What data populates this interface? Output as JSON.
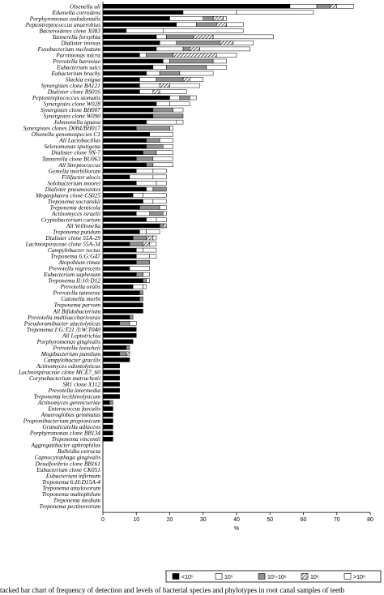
{
  "chart_data": {
    "type": "bar",
    "orientation": "horizontal",
    "stacked": true,
    "title": "",
    "xlabel": "%",
    "ylabel": "",
    "xlim": [
      0,
      80
    ],
    "xticks": [
      0,
      10,
      20,
      30,
      40,
      50,
      60,
      70,
      80
    ],
    "legend_position": "bottom",
    "caption": "tacked bar chart of frequency of detection and levels of bacterial species and phylotypes in root canal samples of teeth",
    "series": [
      {
        "name": "<10⁵",
        "color": "#000000",
        "pattern": "solid"
      },
      {
        "name": "10⁵",
        "color": "#ffffff",
        "pattern": "solid"
      },
      {
        "name": "10⁵-10⁶",
        "color": "#909090",
        "pattern": "solid"
      },
      {
        "name": "10⁶",
        "color": "#ffffff",
        "pattern": "hatch"
      },
      {
        "name": ">10⁶",
        "color": "#ffffff",
        "pattern": "solid"
      }
    ],
    "categories": [
      "Olsenella uli",
      "Eikenella corrodens",
      "Porphyromonas endodontalis",
      "Peptostreptococcus anaerobius",
      "Bacteroidetes clone X083",
      "Tannerella forsythia",
      "Dialister invisus",
      "Fusobacterium nucleatum",
      "Parvimonas micra",
      "Prevotella baroniae",
      "Eubacterium sulci",
      "Eubacterium brachy",
      "Slackia exigua",
      "Synergistes clone BA121",
      "Dialister clone BS016",
      "Peptostreptococcus stomatis",
      "Synergistes clone W028",
      "Synergistes clone BH007",
      "Synergistes clone W090",
      "Johnsonella ignava",
      "Synergistes clones D084/BH017",
      "Olsenella genomospecies C1",
      "All Lactobacillus",
      "Selenomonas sputigena",
      "Dialister clone 9N-7",
      "Tannerella clone BU063",
      "All Streptococcus",
      "Gemella morbillorum",
      "Filifactor alocis",
      "Solobacterium moorei",
      "Dialister pneumosintes",
      "Megasphaera clone CS025",
      "Treponema socranskii",
      "Treponema denticola",
      "Actinomyces israelii",
      "Cryptobacterium curtum",
      "All Veillonella",
      "Treponema putidum",
      "Dialister clone 55A-29",
      "Lachnospiraceae clone 55A-34",
      "Campylobacter rectus",
      "Treponema 6:G:G47",
      "Atopobium rimae",
      "Prevotella nigrescens",
      "Eubacterium saphenum",
      "Treponema II:10:D12",
      "Prevotella oralis",
      "Prevotella tannerae",
      "Catonella morbi",
      "Treponema parvum",
      "All Bifidobacterium",
      "Prevotella multisaccharivorax",
      "Pseudoramibacter alactolyticus",
      "Treponema I:G:T21 /I:W:T040",
      "All Leptotrichia",
      "Porphyromonas gingivalis",
      "Prevotella loescheii",
      "Mogibacterium pumilum",
      "Campylobacter gracilis",
      "Actinomyces odontolyticus",
      "Lachnospiraceae clone MCE7_60",
      "Corynebacterium matruchotii",
      "SR1 clone X112",
      "Prevotella intermedia",
      "Treponema lecithinolyticum",
      "Actinomyces gerencseriae",
      "Enterococcus faecalis",
      "Anaeroglobus geminatus",
      "Propionibacterium propionicum",
      "Granulicatella adiacens",
      "Porphyromonas clone BB134",
      "Treponema vincentii",
      "Aggregatibacter aphrophilus",
      "Bulleidia extructa",
      "Capnocytophaga gingivalis",
      "Desulfovibrio clone BB161",
      "Eubacterium clone CK051",
      "Eubacterium infirmum",
      "Treponema 6:H:D15A-4",
      "Treponema amylovorum",
      "Treponema maltophilum",
      "Treponema medium",
      "Treponema pectinovorum"
    ],
    "values": [
      [
        56,
        8,
        4,
        2,
        5
      ],
      [
        24,
        16,
        0,
        0,
        23
      ],
      [
        20,
        10,
        3,
        3,
        1
      ],
      [
        22,
        6,
        6,
        3,
        5
      ],
      [
        7,
        11,
        0,
        0,
        24
      ],
      [
        16,
        3,
        8,
        6,
        18
      ],
      [
        17,
        5,
        13,
        4,
        6
      ],
      [
        16,
        8,
        2,
        3,
        15
      ],
      [
        11,
        2,
        8,
        13,
        6
      ],
      [
        18,
        2,
        13,
        0,
        4
      ],
      [
        15,
        4,
        12,
        0,
        6
      ],
      [
        13,
        4,
        6,
        0,
        10
      ],
      [
        11,
        5,
        8,
        2,
        4
      ],
      [
        11,
        6,
        0,
        3,
        9
      ],
      [
        11,
        4,
        0,
        2,
        8
      ],
      [
        20,
        3,
        3,
        0,
        2
      ],
      [
        16,
        4,
        0,
        0,
        6
      ],
      [
        15,
        0,
        6,
        0,
        3
      ],
      [
        15,
        0,
        9,
        0,
        0
      ],
      [
        13,
        9,
        0,
        0,
        2
      ],
      [
        10,
        0,
        10,
        0,
        1
      ],
      [
        14,
        7,
        0,
        0,
        0
      ],
      [
        13,
        0,
        4,
        0,
        4
      ],
      [
        13,
        0,
        5,
        0,
        3
      ],
      [
        12,
        0,
        4,
        0,
        5
      ],
      [
        10,
        0,
        5,
        0,
        6
      ],
      [
        13,
        0,
        2,
        0,
        6
      ],
      [
        10,
        5,
        0,
        0,
        4
      ],
      [
        8,
        7,
        0,
        0,
        4
      ],
      [
        10,
        6,
        0,
        0,
        3
      ],
      [
        13,
        2,
        4,
        0,
        0
      ],
      [
        9,
        3,
        0,
        0,
        7
      ],
      [
        12,
        3,
        0,
        0,
        4
      ],
      [
        11,
        0,
        6,
        0,
        2
      ],
      [
        10,
        4,
        4,
        0,
        1
      ],
      [
        13,
        3,
        0,
        0,
        3
      ],
      [
        17,
        0,
        1,
        1,
        0
      ],
      [
        11,
        2,
        0,
        0,
        4
      ],
      [
        9,
        0,
        4,
        2,
        1
      ],
      [
        8,
        0,
        4,
        2,
        2
      ],
      [
        10,
        2,
        0,
        0,
        4
      ],
      [
        10,
        4,
        0,
        0,
        2
      ],
      [
        10,
        0,
        4,
        0,
        0
      ],
      [
        8,
        0,
        0,
        0,
        6
      ],
      [
        10,
        0,
        2,
        0,
        2
      ],
      [
        12,
        0,
        1,
        0,
        1
      ],
      [
        9,
        3,
        0,
        0,
        1
      ],
      [
        11,
        0,
        1,
        0,
        0
      ],
      [
        11,
        0,
        1,
        0,
        0
      ],
      [
        12,
        0,
        0,
        0,
        0
      ],
      [
        12,
        0,
        0,
        0,
        0
      ],
      [
        8,
        0,
        1,
        0,
        0
      ],
      [
        5,
        0,
        3,
        0,
        2
      ],
      [
        10,
        0,
        0,
        0,
        0
      ],
      [
        10,
        0,
        0,
        0,
        0
      ],
      [
        9,
        0,
        0,
        0,
        0
      ],
      [
        7,
        0,
        1,
        0,
        0
      ],
      [
        5,
        0,
        2,
        1,
        0
      ],
      [
        8,
        0,
        0,
        0,
        0
      ],
      [
        5,
        0,
        0,
        0,
        0
      ],
      [
        5,
        0,
        0,
        0,
        0
      ],
      [
        5,
        0,
        0,
        0,
        0
      ],
      [
        5,
        0,
        0,
        0,
        0
      ],
      [
        5,
        0,
        0,
        0,
        0
      ],
      [
        5,
        0,
        0,
        0,
        0
      ],
      [
        2,
        0,
        1,
        0,
        0
      ],
      [
        3,
        0,
        0,
        0,
        0
      ],
      [
        3,
        0,
        0,
        0,
        0
      ],
      [
        3,
        0,
        0,
        0,
        0
      ],
      [
        3,
        0,
        0,
        0,
        0
      ],
      [
        3,
        0,
        0,
        0,
        0
      ],
      [
        3,
        0,
        0,
        0,
        0
      ],
      [
        0,
        0,
        0,
        0,
        0
      ],
      [
        0,
        0,
        0,
        0,
        0
      ],
      [
        0,
        0,
        0,
        0,
        0
      ],
      [
        0,
        0,
        0,
        0,
        0
      ],
      [
        0,
        0,
        0,
        0,
        0
      ],
      [
        0,
        0,
        0,
        0,
        0
      ],
      [
        0,
        0,
        0,
        0,
        0
      ],
      [
        0,
        0,
        0,
        0,
        0
      ],
      [
        0,
        0,
        0,
        0,
        0
      ],
      [
        0,
        0,
        0,
        0,
        0
      ],
      [
        0,
        0,
        0,
        0,
        0
      ]
    ]
  }
}
